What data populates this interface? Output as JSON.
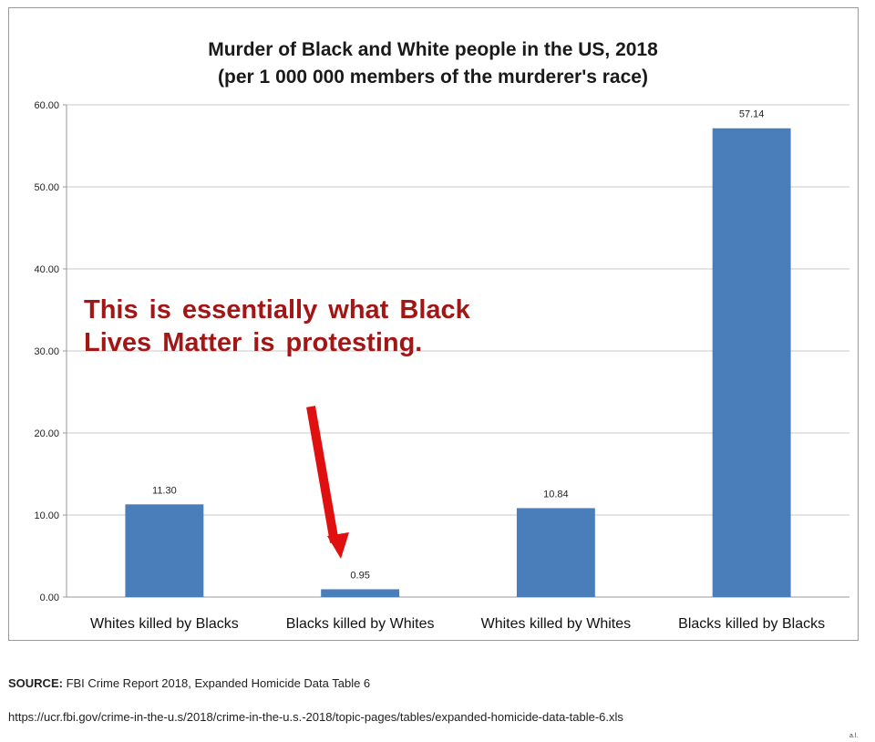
{
  "chart_data": {
    "type": "bar",
    "title": "Murder of Black and White people in the US, 2018",
    "subtitle": "(per 1 000 000 members of the murderer's race)",
    "xlabel": "",
    "ylabel": "",
    "categories": [
      "Whites killed by Blacks",
      "Blacks killed by Whites",
      "Whites killed by Whites",
      "Blacks killed by Blacks"
    ],
    "values": [
      11.3,
      0.95,
      10.84,
      57.14
    ],
    "value_labels": [
      "11.30",
      "0.95",
      "10.84",
      "57.14"
    ],
    "ylim": [
      0,
      60
    ],
    "yticks": [
      "0.00",
      "10.00",
      "20.00",
      "30.00",
      "40.00",
      "50.00",
      "60.00"
    ],
    "grid": true,
    "bar_color": "#4a7ebb",
    "annotation": {
      "text_line1": "This is essentially what Black",
      "text_line2": "Lives Matter is protesting.",
      "color": "#a31616",
      "arrow_color": "#e01010",
      "points_to": "Blacks killed by Whites"
    }
  },
  "source": {
    "label": "SOURCE:",
    "text": " FBI Crime Report 2018, Expanded Homicide Data Table 6",
    "url": "https://ucr.fbi.gov/crime-in-the-u.s/2018/crime-in-the-u.s.-2018/topic-pages/tables/expanded-homicide-data-table-6.xls"
  },
  "credit": "a.l."
}
